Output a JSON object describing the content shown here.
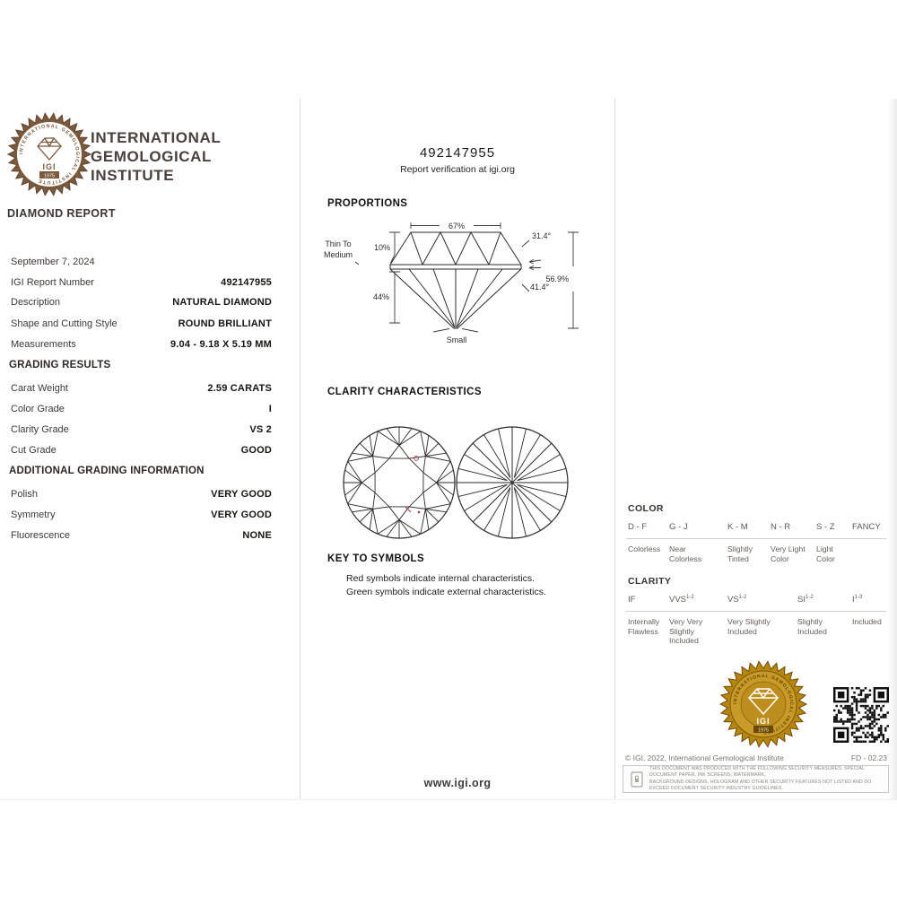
{
  "header": {
    "org_name_lines": [
      "INTERNATIONAL",
      "GEMOLOGICAL",
      "INSTITUTE"
    ],
    "report_type": "DIAMOND REPORT",
    "seal_ring_text": "INTERNATIONAL GEMOLOGICAL INSTITUTE",
    "seal_igi": "IGI",
    "seal_year": "1975"
  },
  "report": {
    "date": "September 7, 2024",
    "fields": [
      {
        "label": "IGI Report Number",
        "value": "492147955"
      },
      {
        "label": "Description",
        "value": "NATURAL DIAMOND"
      },
      {
        "label": "Shape and Cutting Style",
        "value": "ROUND BRILLIANT"
      },
      {
        "label": "Measurements",
        "value": "9.04 - 9.18 X 5.19 MM"
      }
    ],
    "grading_header": "GRADING RESULTS",
    "grading": [
      {
        "label": "Carat Weight",
        "value": "2.59 CARATS"
      },
      {
        "label": "Color Grade",
        "value": "I"
      },
      {
        "label": "Clarity Grade",
        "value": "VS 2"
      },
      {
        "label": "Cut Grade",
        "value": "GOOD"
      }
    ],
    "additional_header": "ADDITIONAL GRADING INFORMATION",
    "additional": [
      {
        "label": "Polish",
        "value": "VERY GOOD"
      },
      {
        "label": "Symmetry",
        "value": "VERY GOOD"
      },
      {
        "label": "Fluorescence",
        "value": "NONE"
      }
    ]
  },
  "middle": {
    "report_number": "492147955",
    "verification": "Report verification at igi.org",
    "proportions_title": "PROPORTIONS",
    "proportions": {
      "table_pct": "67%",
      "crown_angle": "31.4°",
      "crown_height": "10%",
      "girdle_line1": "Thin To",
      "girdle_line2": "Medium",
      "pavilion_depth": "44%",
      "pavilion_angle": "41.4°",
      "total_depth": "56.9%",
      "culet": "Small"
    },
    "clarity_title": "CLARITY CHARACTERISTICS",
    "key_title": "KEY TO SYMBOLS",
    "key_lines": [
      "Red symbols indicate internal characteristics.",
      "Green symbols indicate external characteristics."
    ],
    "website": "www.igi.org"
  },
  "scales": {
    "color": {
      "title": "COLOR",
      "grades": [
        {
          "range": "D - F",
          "desc": "Colorless"
        },
        {
          "range": "G - J",
          "desc": "Near Colorless"
        },
        {
          "range": "K - M",
          "desc": "Slightly Tinted"
        },
        {
          "range": "N - R",
          "desc": "Very Light Color"
        },
        {
          "range": "S - Z",
          "desc": "Light Color"
        },
        {
          "range": "FANCY",
          "desc": ""
        }
      ]
    },
    "clarity": {
      "title": "CLARITY",
      "grades": [
        {
          "base": "IF",
          "sup": "",
          "desc": "Internally Flawless"
        },
        {
          "base": "VVS",
          "sup": "1-2",
          "desc": "Very Very Slightly Included"
        },
        {
          "base": "VS",
          "sup": "1-2",
          "desc": "Very Slightly Included"
        },
        {
          "base": "SI",
          "sup": "1-2",
          "desc": "Slightly Included"
        },
        {
          "base": "I",
          "sup": "1-3",
          "desc": "Included"
        }
      ]
    }
  },
  "footer": {
    "copyright": "© IGI, 2022, International Gemological Institute",
    "form_code": "FD - 02.23",
    "security_line1": "THIS DOCUMENT WAS PRODUCED WITH THE FOLLOWING SECURITY MEASURES:  SPECIAL DOCUMENT PAPER, INK SCREENS, WATERMARK,",
    "security_line2": "BACKGROUND DESIGNS, HOLOGRAM AND OTHER SECURITY FEATURES NOT LISTED AND DO EXCEED DOCUMENT SECURITY INDUSTRY GUIDELINES."
  },
  "colors": {
    "seal_brown": "#7b5a3c",
    "seal_gold": "#b8860b",
    "seal_gold_dark": "#6b4a08",
    "red_symbol": "#b03344",
    "line_ink": "#2a2a2a"
  }
}
